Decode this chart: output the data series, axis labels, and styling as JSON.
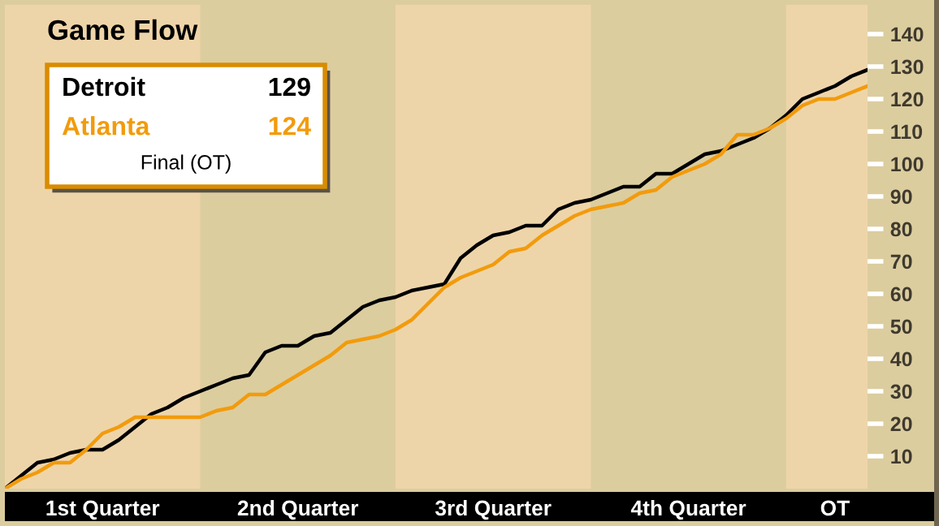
{
  "chart_data": {
    "type": "line",
    "title": "Game Flow",
    "categories": [
      null,
      null,
      null,
      null,
      null,
      null,
      "1st Quarter",
      null,
      null,
      null,
      null,
      null,
      null,
      null,
      null,
      null,
      null,
      null,
      "2nd Quarter",
      null,
      null,
      null,
      null,
      null,
      null,
      null,
      null,
      null,
      null,
      null,
      "3rd Quarter",
      null,
      null,
      null,
      null,
      null,
      null,
      null,
      null,
      null,
      null,
      null,
      "4th Quarter",
      null,
      null,
      null,
      null,
      null,
      null,
      null,
      null,
      "OT",
      null,
      null
    ],
    "ylim": [
      0,
      149
    ],
    "yticks": [
      10,
      20,
      30,
      40,
      50,
      60,
      70,
      80,
      90,
      100,
      110,
      120,
      130,
      140
    ],
    "legend": "top left",
    "grid": false,
    "annotations": [
      "129",
      "124",
      "Final (OT)"
    ],
    "series": [
      {
        "name": "Detroit",
        "color": "#000000",
        "values": [
          0,
          4,
          8,
          9,
          11,
          12,
          12,
          15,
          19,
          23,
          25,
          28,
          30,
          32,
          34,
          35,
          42,
          44,
          44,
          47,
          48,
          52,
          56,
          58,
          59,
          61,
          62,
          63,
          71,
          75,
          78,
          79,
          81,
          81,
          86,
          88,
          89,
          91,
          93,
          93,
          97,
          97,
          100,
          103,
          104,
          106,
          108,
          111,
          115,
          120,
          122,
          124,
          127,
          129
        ]
      },
      {
        "name": "Atlanta",
        "color": "#f29b0c",
        "values": [
          0,
          3,
          5,
          8,
          8,
          12,
          17,
          19,
          22,
          22,
          22,
          22,
          22,
          24,
          25,
          29,
          29,
          32,
          35,
          38,
          41,
          45,
          46,
          47,
          49,
          52,
          57,
          62,
          65,
          67,
          69,
          73,
          74,
          78,
          81,
          84,
          86,
          87,
          88,
          91,
          92,
          96,
          98,
          100,
          103,
          109,
          109,
          111,
          114,
          118,
          120,
          120,
          122,
          124
        ]
      }
    ]
  }
}
